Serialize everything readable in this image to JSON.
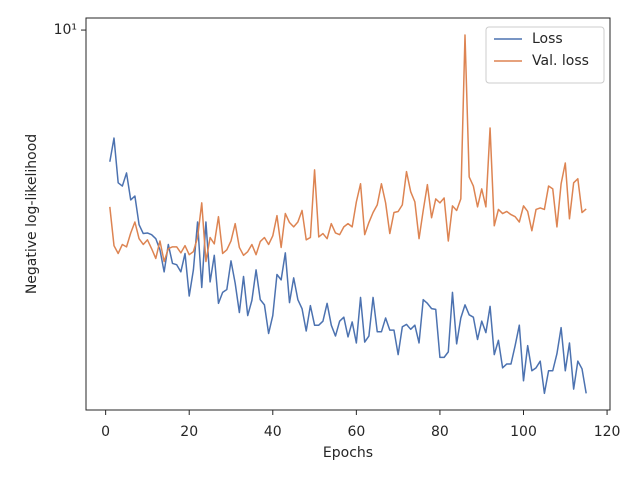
{
  "chart_data": {
    "type": "line",
    "xlabel": "Epochs",
    "ylabel": "Negative log-likelihood",
    "x": [
      1,
      2,
      3,
      4,
      5,
      6,
      7,
      8,
      9,
      10,
      11,
      12,
      13,
      14,
      15,
      16,
      17,
      18,
      19,
      20,
      21,
      22,
      23,
      24,
      25,
      26,
      27,
      28,
      29,
      30,
      31,
      32,
      33,
      34,
      35,
      36,
      37,
      38,
      39,
      40,
      41,
      42,
      43,
      44,
      45,
      46,
      47,
      48,
      49,
      50,
      51,
      52,
      53,
      54,
      55,
      56,
      57,
      58,
      59,
      60,
      61,
      62,
      63,
      64,
      65,
      66,
      67,
      68,
      69,
      70,
      71,
      72,
      73,
      74,
      75,
      76,
      77,
      78,
      79,
      80,
      81,
      82,
      83,
      84,
      85,
      86,
      87,
      88,
      89,
      90,
      91,
      92,
      93,
      94,
      95,
      96,
      97,
      98,
      99,
      100,
      101,
      102,
      103,
      104,
      105,
      106,
      107,
      108,
      109,
      110,
      111,
      112,
      113,
      114,
      115
    ],
    "series": [
      {
        "name": "Loss",
        "color": "#4c72b0",
        "values": [
          5.87,
          6.46,
          5.39,
          5.32,
          5.61,
          5.03,
          5.11,
          4.55,
          4.39,
          4.4,
          4.37,
          4.3,
          4.11,
          3.76,
          4.2,
          3.89,
          3.87,
          3.76,
          4.05,
          3.41,
          3.79,
          4.6,
          3.53,
          4.6,
          3.61,
          4.02,
          3.31,
          3.46,
          3.5,
          3.93,
          3.59,
          3.19,
          3.69,
          3.15,
          3.35,
          3.79,
          3.36,
          3.29,
          2.93,
          3.15,
          3.72,
          3.64,
          4.06,
          3.32,
          3.67,
          3.36,
          3.24,
          2.96,
          3.28,
          3.03,
          3.03,
          3.08,
          3.31,
          3.03,
          2.9,
          3.08,
          3.13,
          2.89,
          3.07,
          2.82,
          3.39,
          2.83,
          2.9,
          3.39,
          2.95,
          2.95,
          3.12,
          2.97,
          2.97,
          2.69,
          3.01,
          3.04,
          2.98,
          3.03,
          2.82,
          3.36,
          3.31,
          3.24,
          3.23,
          2.66,
          2.66,
          2.72,
          3.46,
          2.81,
          3.12,
          3.29,
          3.16,
          3.13,
          2.86,
          3.08,
          2.94,
          3.27,
          2.69,
          2.85,
          2.55,
          2.59,
          2.59,
          2.79,
          3.03,
          2.42,
          2.79,
          2.52,
          2.55,
          2.62,
          2.3,
          2.52,
          2.52,
          2.7,
          3.0,
          2.52,
          2.82,
          2.34,
          2.62,
          2.54,
          2.3
        ]
      },
      {
        "name": "Val. loss",
        "color": "#dd8452",
        "values": [
          4.89,
          4.18,
          4.05,
          4.2,
          4.16,
          4.4,
          4.6,
          4.3,
          4.2,
          4.28,
          4.13,
          3.97,
          4.26,
          3.92,
          4.13,
          4.16,
          4.16,
          4.06,
          4.18,
          4.03,
          4.08,
          4.32,
          4.97,
          3.92,
          4.32,
          4.21,
          4.7,
          4.05,
          4.11,
          4.26,
          4.57,
          4.15,
          4.02,
          4.08,
          4.2,
          4.03,
          4.25,
          4.32,
          4.2,
          4.35,
          4.72,
          4.15,
          4.76,
          4.59,
          4.51,
          4.6,
          4.82,
          4.28,
          4.32,
          5.68,
          4.33,
          4.39,
          4.3,
          4.57,
          4.4,
          4.37,
          4.51,
          4.57,
          4.51,
          4.99,
          5.37,
          4.37,
          4.59,
          4.78,
          4.93,
          5.37,
          4.97,
          4.39,
          4.78,
          4.8,
          4.93,
          5.64,
          5.2,
          4.99,
          4.3,
          4.82,
          5.35,
          4.68,
          5.05,
          4.97,
          5.07,
          4.26,
          4.91,
          4.82,
          5.05,
          9.8,
          5.52,
          5.32,
          4.89,
          5.26,
          4.89,
          6.73,
          4.53,
          4.84,
          4.76,
          4.8,
          4.74,
          4.7,
          4.6,
          4.91,
          4.8,
          4.44,
          4.84,
          4.87,
          4.84,
          5.32,
          5.26,
          4.51,
          5.37,
          5.84,
          4.66,
          5.39,
          5.48,
          4.78,
          4.85
        ]
      }
    ],
    "xlim": [
      -4.7,
      120.7
    ],
    "xticks": [
      0,
      20,
      40,
      60,
      80,
      100,
      120
    ],
    "ylim": [
      2.15,
      10.5
    ],
    "yscale": "log",
    "yticks": [
      {
        "value": 10,
        "label": "10¹"
      }
    ],
    "legend": "upper right"
  }
}
